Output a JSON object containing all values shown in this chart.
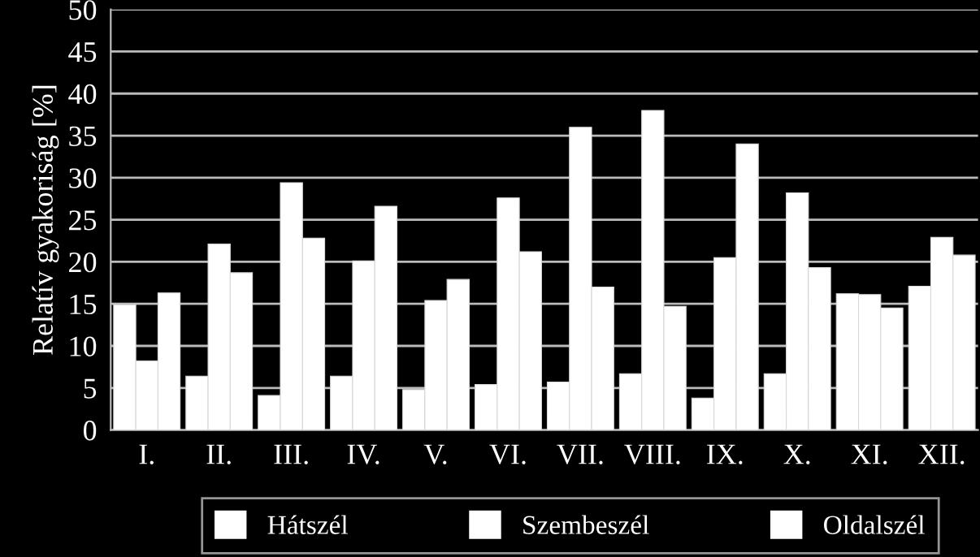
{
  "chart_data": {
    "type": "bar",
    "ylabel": "Relatív gyakoriság [%]",
    "categories": [
      "I.",
      "II.",
      "III.",
      "IV.",
      "V.",
      "VI.",
      "VII.",
      "VIII.",
      "IX.",
      "X.",
      "XI.",
      "XII."
    ],
    "series": [
      {
        "name": "Hátszél",
        "color": "#ffffff",
        "values": [
          14.9,
          6.4,
          4.1,
          6.4,
          4.8,
          5.4,
          5.7,
          6.7,
          3.8,
          6.7,
          16.2,
          17.1
        ]
      },
      {
        "name": "Szembeszél",
        "color": "#ffffff",
        "values": [
          8.2,
          22.1,
          29.4,
          20.1,
          15.4,
          27.6,
          36.0,
          38.0,
          20.5,
          28.2,
          16.1,
          22.9
        ]
      },
      {
        "name": "Oldalszél",
        "color": "#ffffff",
        "values": [
          16.3,
          18.7,
          22.8,
          26.6,
          17.9,
          21.2,
          17.0,
          14.7,
          34.0,
          19.3,
          14.5,
          20.8
        ]
      }
    ],
    "ylim": [
      0,
      50
    ],
    "yticks": [
      0,
      5,
      10,
      15,
      20,
      25,
      30,
      35,
      40,
      45,
      50
    ],
    "grid": "y",
    "legend": "bottom"
  }
}
